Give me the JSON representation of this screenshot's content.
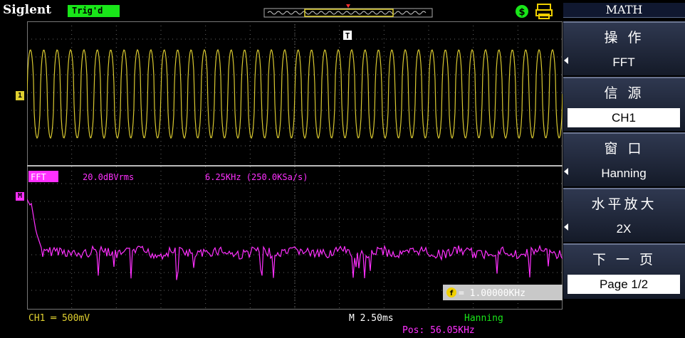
{
  "brand": "Siglent",
  "trigger_status": "Trig'd",
  "icons": {
    "usb": "usb-icon",
    "printer": "printer-icon",
    "trigger_marker": "trigger-marker-icon"
  },
  "ch1_marker": "1",
  "math_marker": "M",
  "trigger_label": "T",
  "fft_label": "FFT",
  "fft_scale": "20.0dBVrms",
  "fft_span": "6.25KHz (250.0KSa/s)",
  "freq_cursor": "= 1.00000KHz",
  "freq_cursor_icon": "f",
  "status": {
    "ch1": "CH1 ═ 500mV",
    "timebase": "M 2.50ms",
    "window": "Hanning",
    "pos": "Pos: 56.05KHz"
  },
  "menu": {
    "title": "MATH",
    "items": [
      {
        "label": "操 作",
        "value": "FFT"
      },
      {
        "label": "信 源",
        "value": "CH1"
      },
      {
        "label": "窗 口",
        "value": "Hanning"
      },
      {
        "label": "水平放大",
        "value": "2X"
      },
      {
        "label": "下 一 页",
        "value": "Page 1/2"
      }
    ]
  },
  "colors": {
    "ch1": "#e0d030",
    "math": "#ff30ff",
    "accent": "#19e619",
    "grid": "#707070"
  }
}
